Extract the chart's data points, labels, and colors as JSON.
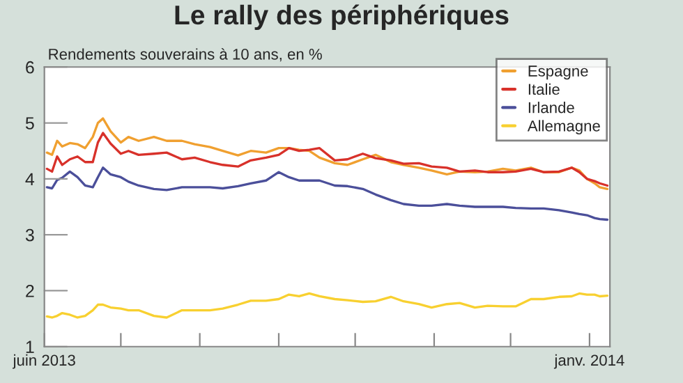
{
  "chart_data": {
    "type": "line",
    "title": "Le rally des périphériques",
    "subtitle": "Rendements souverains à 10 ans, en %",
    "x": [
      "2013-06-02",
      "2013-06-04",
      "2013-06-06",
      "2013-06-08",
      "2013-06-11",
      "2013-06-14",
      "2013-06-17",
      "2013-06-20",
      "2013-06-22",
      "2013-06-24",
      "2013-06-27",
      "2013-07-01",
      "2013-07-04",
      "2013-07-08",
      "2013-07-14",
      "2013-07-19",
      "2013-07-25",
      "2013-07-30",
      "2013-08-05",
      "2013-08-10",
      "2013-08-16",
      "2013-08-21",
      "2013-08-27",
      "2013-09-01",
      "2013-09-05",
      "2013-09-09",
      "2013-09-13",
      "2013-09-17",
      "2013-09-23",
      "2013-09-28",
      "2013-10-04",
      "2013-10-09",
      "2013-10-15",
      "2013-10-20",
      "2013-10-26",
      "2013-10-31",
      "2013-11-06",
      "2013-11-11",
      "2013-11-17",
      "2013-11-22",
      "2013-11-28",
      "2013-12-03",
      "2013-12-09",
      "2013-12-14",
      "2013-12-20",
      "2013-12-25",
      "2013-12-28",
      "2013-12-31",
      "2014-01-03",
      "2014-01-05",
      "2014-01-08"
    ],
    "series": [
      {
        "name": "Espagne",
        "color": "#f0a030",
        "values": [
          4.47,
          4.43,
          4.68,
          4.58,
          4.64,
          4.62,
          4.55,
          4.75,
          5.0,
          5.08,
          4.85,
          4.65,
          4.75,
          4.68,
          4.75,
          4.68,
          4.68,
          4.62,
          4.57,
          4.5,
          4.42,
          4.5,
          4.47,
          4.55,
          4.55,
          4.52,
          4.5,
          4.38,
          4.28,
          4.25,
          4.35,
          4.43,
          4.3,
          4.25,
          4.2,
          4.15,
          4.08,
          4.13,
          4.12,
          4.13,
          4.18,
          4.15,
          4.2,
          4.12,
          4.12,
          4.2,
          4.15,
          4.0,
          3.92,
          3.85,
          3.82
        ]
      },
      {
        "name": "Italie",
        "color": "#d8312a",
        "values": [
          4.18,
          4.13,
          4.4,
          4.25,
          4.35,
          4.4,
          4.3,
          4.3,
          4.65,
          4.82,
          4.63,
          4.45,
          4.5,
          4.43,
          4.45,
          4.47,
          4.35,
          4.38,
          4.3,
          4.25,
          4.22,
          4.33,
          4.38,
          4.43,
          4.55,
          4.5,
          4.52,
          4.55,
          4.33,
          4.35,
          4.45,
          4.37,
          4.33,
          4.27,
          4.28,
          4.22,
          4.2,
          4.13,
          4.15,
          4.12,
          4.12,
          4.13,
          4.18,
          4.12,
          4.13,
          4.2,
          4.12,
          4.0,
          3.96,
          3.92,
          3.88
        ]
      },
      {
        "name": "Irlande",
        "color": "#4b4f9a",
        "values": [
          3.85,
          3.83,
          3.98,
          4.02,
          4.13,
          4.03,
          3.88,
          3.85,
          4.03,
          4.2,
          4.08,
          4.03,
          3.95,
          3.88,
          3.82,
          3.8,
          3.85,
          3.85,
          3.85,
          3.83,
          3.87,
          3.92,
          3.97,
          4.12,
          4.03,
          3.97,
          3.97,
          3.97,
          3.88,
          3.87,
          3.82,
          3.72,
          3.62,
          3.55,
          3.52,
          3.52,
          3.55,
          3.52,
          3.5,
          3.5,
          3.5,
          3.48,
          3.47,
          3.47,
          3.44,
          3.4,
          3.37,
          3.35,
          3.3,
          3.28,
          3.27
        ]
      },
      {
        "name": "Allemagne",
        "color": "#f8d030",
        "values": [
          1.54,
          1.52,
          1.55,
          1.6,
          1.57,
          1.52,
          1.55,
          1.65,
          1.75,
          1.75,
          1.7,
          1.68,
          1.65,
          1.65,
          1.55,
          1.52,
          1.65,
          1.65,
          1.65,
          1.68,
          1.75,
          1.82,
          1.82,
          1.85,
          1.93,
          1.9,
          1.95,
          1.9,
          1.85,
          1.83,
          1.8,
          1.81,
          1.89,
          1.81,
          1.76,
          1.7,
          1.76,
          1.78,
          1.7,
          1.73,
          1.72,
          1.72,
          1.85,
          1.85,
          1.89,
          1.9,
          1.95,
          1.93,
          1.93,
          1.9,
          1.91
        ]
      }
    ],
    "xlim": [
      "2013-06-01",
      "2014-01-09"
    ],
    "xticks": [
      {
        "value": "2013-06-01",
        "label": "juin 2013"
      },
      {
        "value": "2013-07-01",
        "label": null
      },
      {
        "value": "2013-08-01",
        "label": null
      },
      {
        "value": "2013-09-01",
        "label": null
      },
      {
        "value": "2013-10-01",
        "label": null
      },
      {
        "value": "2013-11-01",
        "label": null
      },
      {
        "value": "2013-12-01",
        "label": null
      },
      {
        "value": "2014-01-01",
        "label": "janv. 2014"
      }
    ],
    "ylim": [
      1,
      6
    ],
    "yticks": [
      1,
      2,
      3,
      4,
      5,
      6
    ],
    "legend": "top right",
    "grid": false,
    "line_style": "solid",
    "marker": "none"
  }
}
